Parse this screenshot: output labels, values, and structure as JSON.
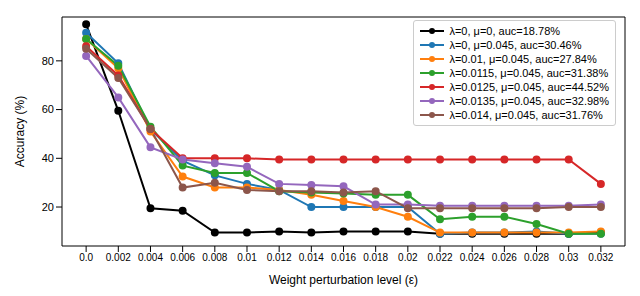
{
  "chart_data": {
    "type": "line",
    "x_label": "Weight perturbation level (ε)",
    "y_label": "Accuracy (%)",
    "x": [
      0,
      0.002,
      0.004,
      0.006,
      0.008,
      0.01,
      0.012,
      0.014,
      0.016,
      0.018,
      0.02,
      0.022,
      0.024,
      0.026,
      0.028,
      0.03,
      0.032
    ],
    "xlim": [
      -0.0015,
      0.0335
    ],
    "xticks": [
      {
        "value": 0,
        "label": "0.0"
      },
      0.002,
      0.004,
      0.006,
      0.008,
      0.01,
      0.012,
      0.014,
      0.016,
      0.018,
      0.02,
      0.022,
      0.024,
      0.026,
      0.028,
      0.03,
      0.032
    ],
    "ylim": [
      4,
      98
    ],
    "yticks": [
      20,
      40,
      60,
      80
    ],
    "grid": false,
    "legend": "upper right",
    "marker": "o",
    "series": [
      {
        "name": "λ=0, μ=0, auc=18.78%",
        "color": "#000000",
        "values": [
          95,
          59.5,
          19.5,
          18.5,
          9.5,
          9.5,
          10,
          9.5,
          10,
          10,
          10,
          9,
          9,
          9,
          9,
          9,
          9.5
        ]
      },
      {
        "name": "λ=0, μ=0.045, auc=30.46%",
        "color": "#1f77b4",
        "values": [
          91.5,
          79,
          52,
          39,
          33,
          29.5,
          27,
          20,
          20,
          20,
          20,
          9,
          9.5,
          9.5,
          10,
          9,
          9
        ]
      },
      {
        "name": "λ=0.01, μ=0.045, auc=27.84%",
        "color": "#ff7f0e",
        "values": [
          89,
          77,
          51,
          32.5,
          28,
          28,
          27,
          25,
          22.5,
          20,
          16,
          9.5,
          9.5,
          9.5,
          9.5,
          9.5,
          10
        ]
      },
      {
        "name": "λ=0.0115, μ=0.045, auc=31.38%",
        "color": "#2ca02c",
        "values": [
          89,
          78,
          53,
          37,
          34,
          34,
          26.5,
          26,
          25.5,
          25,
          25,
          15,
          16,
          16,
          13,
          9,
          9
        ]
      },
      {
        "name": "λ=0.0125, μ=0.045, auc=44.52%",
        "color": "#d62728",
        "values": [
          86,
          74,
          52,
          40,
          40,
          40,
          39.5,
          39.5,
          39.5,
          39.5,
          39.5,
          39.5,
          39.5,
          39.5,
          39.5,
          39.5,
          29.5
        ]
      },
      {
        "name": "λ=0.0135, μ=0.045, auc=32.98%",
        "color": "#9467bd",
        "values": [
          82,
          65,
          44.5,
          39.5,
          38,
          36.5,
          29.5,
          29,
          28.5,
          21,
          21,
          20.5,
          20.5,
          20.5,
          20.5,
          20.5,
          21
        ]
      },
      {
        "name": "λ=0.014, μ=0.045, auc=31.76%",
        "color": "#8c564b",
        "values": [
          85,
          73,
          52,
          28,
          30,
          27,
          26.5,
          26.5,
          26,
          26.5,
          19.5,
          19.5,
          19.5,
          19.5,
          19.5,
          20,
          20
        ]
      }
    ]
  }
}
